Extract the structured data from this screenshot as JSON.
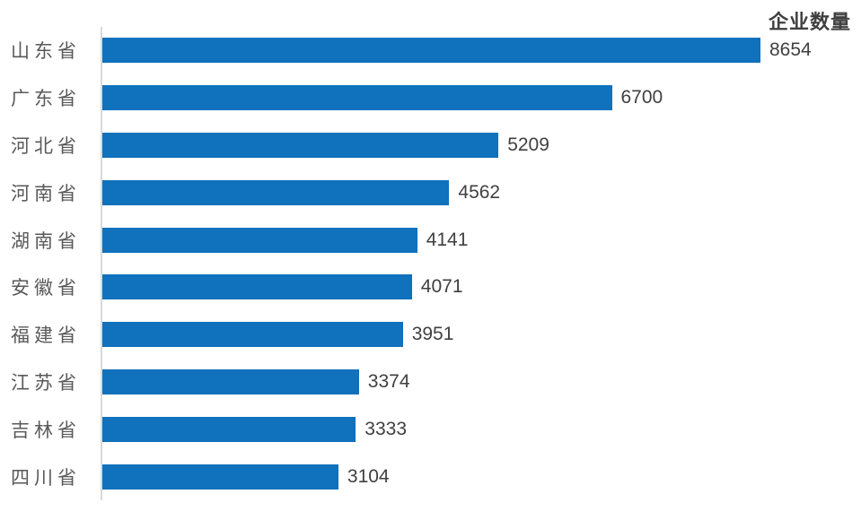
{
  "chart_data": {
    "type": "bar",
    "orientation": "horizontal",
    "title": "企业数量",
    "categories": [
      "山东省",
      "广东省",
      "河北省",
      "河南省",
      "湖南省",
      "安徽省",
      "福建省",
      "江苏省",
      "吉林省",
      "四川省"
    ],
    "values": [
      8654,
      6700,
      5209,
      4562,
      4141,
      4071,
      3951,
      3374,
      3333,
      3104
    ],
    "xlabel": "",
    "ylabel": "",
    "xlim": [
      0,
      8654
    ],
    "grid": false,
    "legend": "none",
    "data_labels": "outside-end",
    "bar_color": "#1071bc",
    "category_label_color": "#595959",
    "value_label_color": "#404040",
    "title_color": "#3f3f3f",
    "axis_line_color": "#d9d9d9"
  }
}
